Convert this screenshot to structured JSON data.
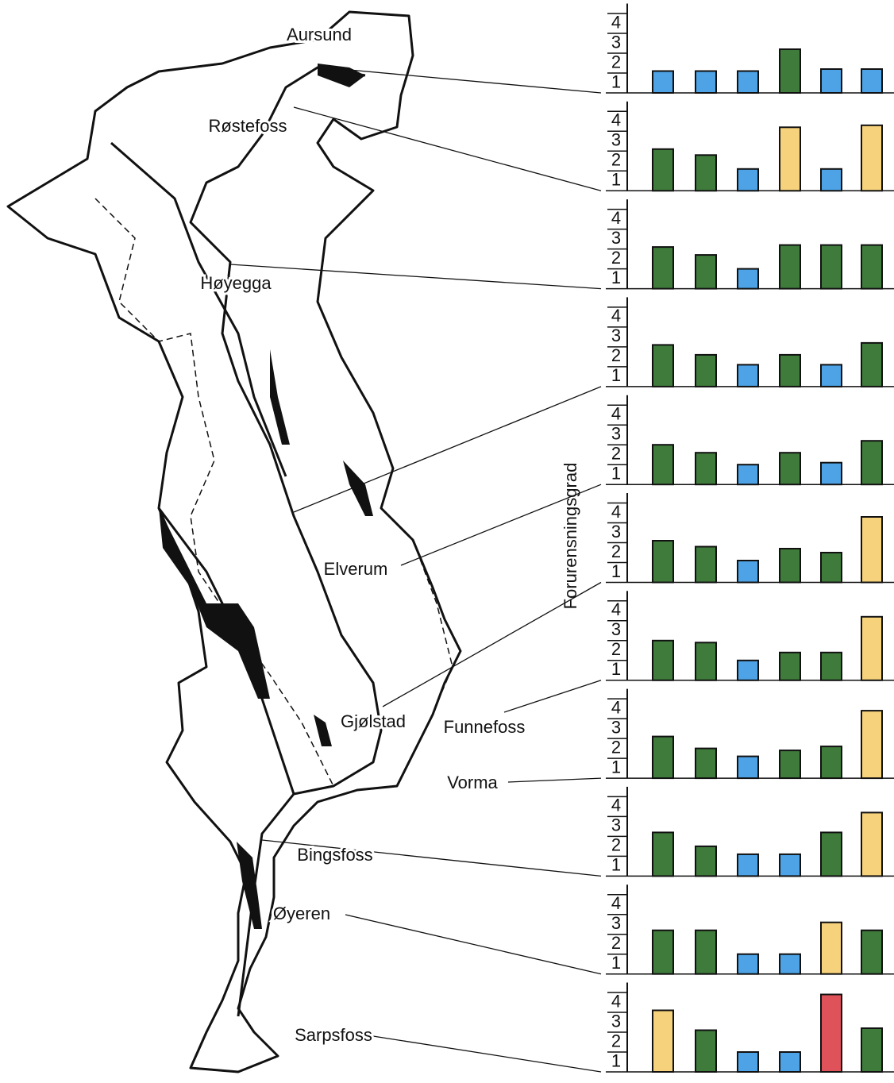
{
  "axis_label": "Forurensningsgrad",
  "chart_data": [
    {
      "type": "bar",
      "title": "Aursund",
      "values": [
        1.1,
        1.1,
        1.1,
        2.2,
        1.2,
        1.2
      ],
      "colors": [
        "#4da3e6",
        "#4da3e6",
        "#4da3e6",
        "#3f7b3b",
        "#4da3e6",
        "#4da3e6"
      ],
      "ylim": [
        0,
        4.5
      ],
      "yticks": [
        {
          "value": 0.5,
          "label": "1"
        },
        {
          "value": 1.5,
          "label": "2"
        },
        {
          "value": 2.5,
          "label": "3"
        },
        {
          "value": 3.5,
          "label": "4"
        }
      ]
    },
    {
      "type": "bar",
      "title": "Røstefoss",
      "values": [
        2.1,
        1.8,
        1.1,
        3.2,
        1.1,
        3.3
      ],
      "colors": [
        "#3f7b3b",
        "#3f7b3b",
        "#4da3e6",
        "#f6d27c",
        "#4da3e6",
        "#f6d27c"
      ],
      "ylim": [
        0,
        4.5
      ],
      "yticks": [
        {
          "value": 0.5,
          "label": "1"
        },
        {
          "value": 1.5,
          "label": "2"
        },
        {
          "value": 2.5,
          "label": "3"
        },
        {
          "value": 3.5,
          "label": "4"
        }
      ]
    },
    {
      "type": "bar",
      "title": "Høyegga",
      "values": [
        2.1,
        1.7,
        1.0,
        2.2,
        2.2,
        2.2
      ],
      "colors": [
        "#3f7b3b",
        "#3f7b3b",
        "#4da3e6",
        "#3f7b3b",
        "#3f7b3b",
        "#3f7b3b"
      ],
      "ylim": [
        0,
        4.5
      ],
      "yticks": [
        {
          "value": 0.5,
          "label": "1"
        },
        {
          "value": 1.5,
          "label": "2"
        },
        {
          "value": 2.5,
          "label": "3"
        },
        {
          "value": 3.5,
          "label": "4"
        }
      ]
    },
    {
      "type": "bar",
      "values": [
        2.1,
        1.6,
        1.1,
        1.6,
        1.1,
        2.2
      ],
      "colors": [
        "#3f7b3b",
        "#3f7b3b",
        "#4da3e6",
        "#3f7b3b",
        "#4da3e6",
        "#3f7b3b"
      ],
      "ylim": [
        0,
        4.5
      ],
      "yticks": [
        {
          "value": 0.5,
          "label": "1"
        },
        {
          "value": 1.5,
          "label": "2"
        },
        {
          "value": 2.5,
          "label": "3"
        },
        {
          "value": 3.5,
          "label": "4"
        }
      ]
    },
    {
      "type": "bar",
      "title": "Elverum",
      "values": [
        2.0,
        1.6,
        1.0,
        1.6,
        1.1,
        2.2
      ],
      "colors": [
        "#3f7b3b",
        "#3f7b3b",
        "#4da3e6",
        "#3f7b3b",
        "#4da3e6",
        "#3f7b3b"
      ],
      "ylim": [
        0,
        4.5
      ],
      "yticks": [
        {
          "value": 0.5,
          "label": "1"
        },
        {
          "value": 1.5,
          "label": "2"
        },
        {
          "value": 2.5,
          "label": "3"
        },
        {
          "value": 3.5,
          "label": "4"
        }
      ]
    },
    {
      "type": "bar",
      "title": "Gjølstad",
      "values": [
        2.1,
        1.8,
        1.1,
        1.7,
        1.5,
        3.3
      ],
      "colors": [
        "#3f7b3b",
        "#3f7b3b",
        "#4da3e6",
        "#3f7b3b",
        "#3f7b3b",
        "#f6d27c"
      ],
      "ylim": [
        0,
        4.5
      ],
      "yticks": [
        {
          "value": 0.5,
          "label": "1"
        },
        {
          "value": 1.5,
          "label": "2"
        },
        {
          "value": 2.5,
          "label": "3"
        },
        {
          "value": 3.5,
          "label": "4"
        }
      ]
    },
    {
      "type": "bar",
      "title": "Funnefoss",
      "values": [
        2.0,
        1.9,
        1.0,
        1.4,
        1.4,
        3.2
      ],
      "colors": [
        "#3f7b3b",
        "#3f7b3b",
        "#4da3e6",
        "#3f7b3b",
        "#3f7b3b",
        "#f6d27c"
      ],
      "ylim": [
        0,
        4.5
      ],
      "yticks": [
        {
          "value": 0.5,
          "label": "1"
        },
        {
          "value": 1.5,
          "label": "2"
        },
        {
          "value": 2.5,
          "label": "3"
        },
        {
          "value": 3.5,
          "label": "4"
        }
      ]
    },
    {
      "type": "bar",
      "title": "Vorma",
      "values": [
        2.1,
        1.5,
        1.1,
        1.4,
        1.6,
        3.4
      ],
      "colors": [
        "#3f7b3b",
        "#3f7b3b",
        "#4da3e6",
        "#3f7b3b",
        "#3f7b3b",
        "#f6d27c"
      ],
      "ylim": [
        0,
        4.5
      ],
      "yticks": [
        {
          "value": 0.5,
          "label": "1"
        },
        {
          "value": 1.5,
          "label": "2"
        },
        {
          "value": 2.5,
          "label": "3"
        },
        {
          "value": 3.5,
          "label": "4"
        }
      ]
    },
    {
      "type": "bar",
      "title": "Bingsfoss",
      "values": [
        2.2,
        1.5,
        1.1,
        1.1,
        2.2,
        3.2
      ],
      "colors": [
        "#3f7b3b",
        "#3f7b3b",
        "#4da3e6",
        "#4da3e6",
        "#3f7b3b",
        "#f6d27c"
      ],
      "ylim": [
        0,
        4.5
      ],
      "yticks": [
        {
          "value": 0.5,
          "label": "1"
        },
        {
          "value": 1.5,
          "label": "2"
        },
        {
          "value": 2.5,
          "label": "3"
        },
        {
          "value": 3.5,
          "label": "4"
        }
      ]
    },
    {
      "type": "bar",
      "title": "Øyeren",
      "values": [
        2.2,
        2.2,
        1.0,
        1.0,
        2.6,
        2.2
      ],
      "colors": [
        "#3f7b3b",
        "#3f7b3b",
        "#4da3e6",
        "#4da3e6",
        "#f6d27c",
        "#3f7b3b"
      ],
      "ylim": [
        0,
        4.5
      ],
      "yticks": [
        {
          "value": 0.5,
          "label": "1"
        },
        {
          "value": 1.5,
          "label": "2"
        },
        {
          "value": 2.5,
          "label": "3"
        },
        {
          "value": 3.5,
          "label": "4"
        }
      ]
    },
    {
      "type": "bar",
      "title": "Sarpsfoss",
      "values": [
        3.1,
        2.1,
        1.0,
        1.0,
        3.9,
        2.2
      ],
      "colors": [
        "#f6d27c",
        "#3f7b3b",
        "#4da3e6",
        "#4da3e6",
        "#e0525a",
        "#3f7b3b"
      ],
      "ylim": [
        0,
        4.5
      ],
      "yticks": [
        {
          "value": 0.5,
          "label": "1"
        },
        {
          "value": 1.5,
          "label": "2"
        },
        {
          "value": 2.5,
          "label": "3"
        },
        {
          "value": 3.5,
          "label": "4"
        }
      ]
    }
  ]
}
